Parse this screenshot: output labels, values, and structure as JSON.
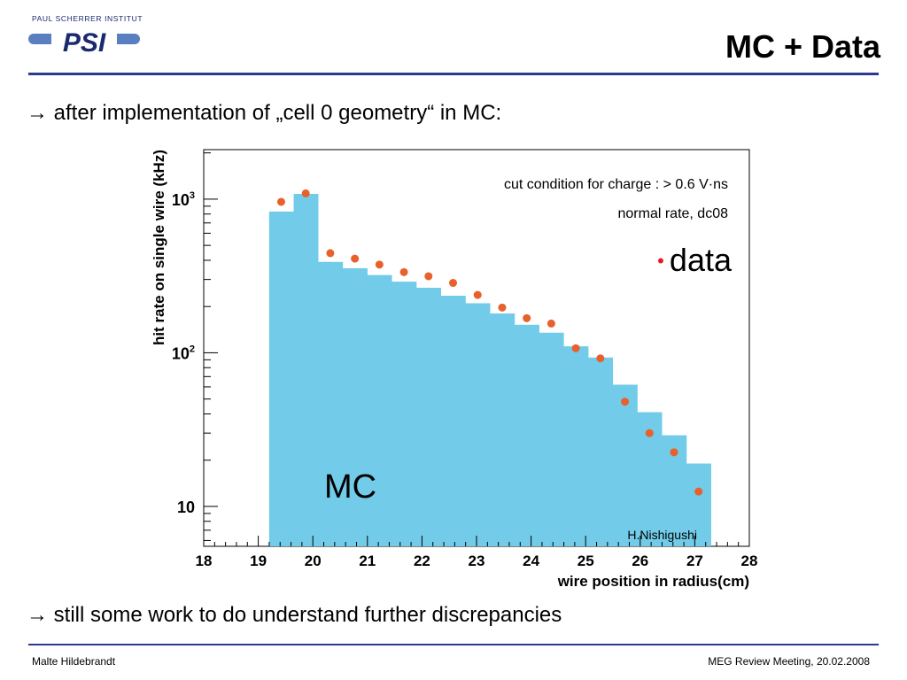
{
  "header": {
    "institute": "PAUL SCHERRER INSTITUT",
    "logo_mark": "PSI",
    "title": "MC + Data"
  },
  "bullets": [
    "→ after implementation of „cell 0 geometry“ in MC:",
    "→ still some work to do understand further discrepancies"
  ],
  "footer": {
    "author": "Malte Hildebrandt",
    "event": "MEG Review Meeting, 20.02.2008"
  },
  "colors": {
    "rule": "#2b3a8c",
    "histogram_fill": "#72cbe9",
    "data_points": "#e8602c",
    "data_bullet": "#e31b23"
  },
  "chart_data": {
    "type": "bar",
    "xlabel": "wire position in radius(cm)",
    "ylabel": "hit rate on single wire (kHz)",
    "xlim": [
      18,
      28
    ],
    "ylim": [
      5.5,
      2100
    ],
    "yscale": "log",
    "x_ticks": [
      "18",
      "19",
      "20",
      "21",
      "22",
      "23",
      "24",
      "25",
      "26",
      "27",
      "28"
    ],
    "y_ticks": [
      {
        "value": 10,
        "base": "10",
        "exp": ""
      },
      {
        "value": 100,
        "base": "10",
        "exp": "2"
      },
      {
        "value": 1000,
        "base": "10",
        "exp": "3"
      }
    ],
    "series": [
      {
        "name": "MC",
        "style": "histogram",
        "bin_edges": [
          19.2,
          19.65,
          20.1,
          20.55,
          21.0,
          21.45,
          21.9,
          22.35,
          22.8,
          23.25,
          23.7,
          24.15,
          24.6,
          25.05,
          25.5,
          25.95,
          26.4,
          26.85,
          27.3
        ],
        "values": [
          830,
          1080,
          390,
          355,
          320,
          290,
          265,
          235,
          210,
          180,
          152,
          135,
          110,
          93,
          62,
          41,
          29,
          19
        ]
      },
      {
        "name": "data",
        "style": "points",
        "x": [
          19.42,
          19.87,
          20.32,
          20.77,
          21.22,
          21.67,
          22.12,
          22.57,
          23.02,
          23.47,
          23.92,
          24.37,
          24.82,
          25.27,
          25.72,
          26.17,
          26.62,
          27.07
        ],
        "y": [
          960,
          1090,
          445,
          410,
          375,
          335,
          315,
          285,
          238,
          197,
          168,
          155,
          107,
          92,
          48,
          30,
          22.5,
          12.5
        ]
      }
    ],
    "annotations": {
      "cut": "cut condition for charge : > 0.6 V·ns",
      "rate": "normal rate, dc08",
      "legend_bullet": "•",
      "legend_data": "data",
      "mc": "MC",
      "credit": "H.Nishigushi"
    }
  }
}
